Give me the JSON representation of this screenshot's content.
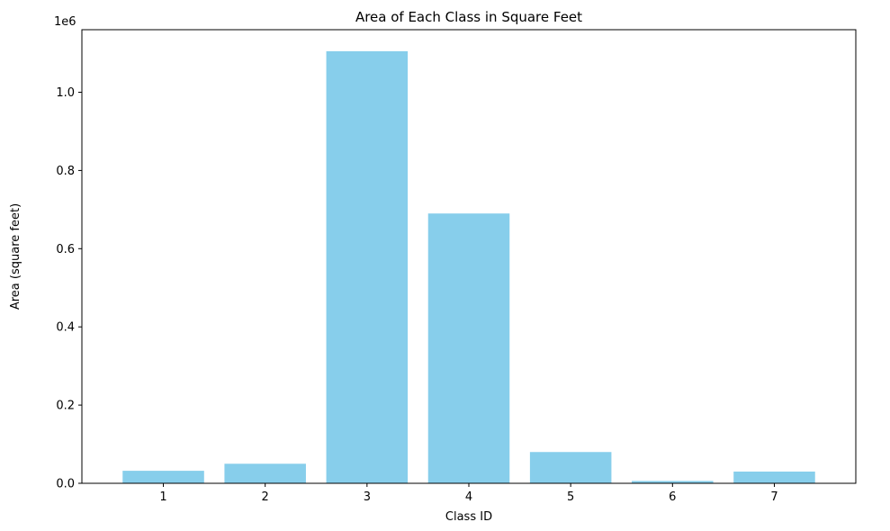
{
  "chart_data": {
    "type": "bar",
    "title": "Area of Each Class in Square Feet",
    "xlabel": "Class ID",
    "ylabel": "Area (square feet)",
    "y_offset_label": "1e6",
    "categories": [
      "1",
      "2",
      "3",
      "4",
      "5",
      "6",
      "7"
    ],
    "values": [
      32000,
      50000,
      1105000,
      690000,
      80000,
      6000,
      30000
    ],
    "ylim": [
      0,
      1160000
    ],
    "yticks": [
      0,
      200000,
      400000,
      600000,
      800000,
      1000000
    ],
    "ytick_labels": [
      "0.0",
      "0.2",
      "0.4",
      "0.6",
      "0.8",
      "1.0"
    ],
    "grid": false,
    "bar_color": "#87ceeb"
  }
}
